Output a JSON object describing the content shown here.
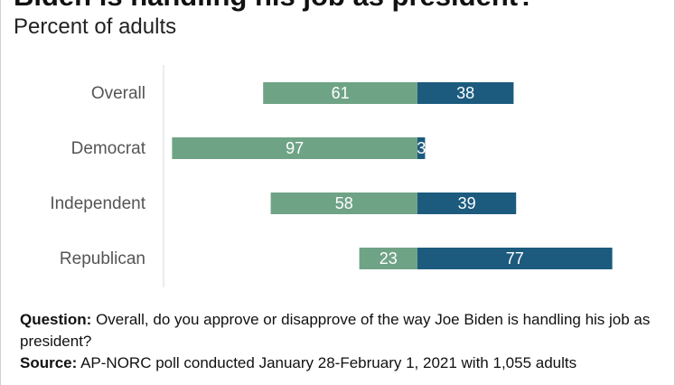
{
  "title": "Biden is handling his job as president?",
  "subtitle": "Percent of adults",
  "colors": {
    "approve": "#6fa386",
    "disapprove": "#1c5b7e",
    "axis": "#d9d9d9"
  },
  "chart_data": {
    "type": "bar",
    "orientation": "horizontal-diverging",
    "categories": [
      "Overall",
      "Democrat",
      "Independent",
      "Republican"
    ],
    "series": [
      {
        "values": [
          61,
          97,
          58,
          23
        ]
      },
      {
        "values": [
          38,
          3,
          39,
          77
        ]
      }
    ],
    "xlim": [
      -100,
      100
    ],
    "grid": false,
    "legend": "none"
  },
  "notes": {
    "question_label": "Question:",
    "question_text": "Overall, do you approve or disapprove of the way Joe Biden is handling his job as president?",
    "source_label": "Source:",
    "source_text": "AP-NORC poll conducted January 28-February 1, 2021 with 1,055 adults"
  }
}
